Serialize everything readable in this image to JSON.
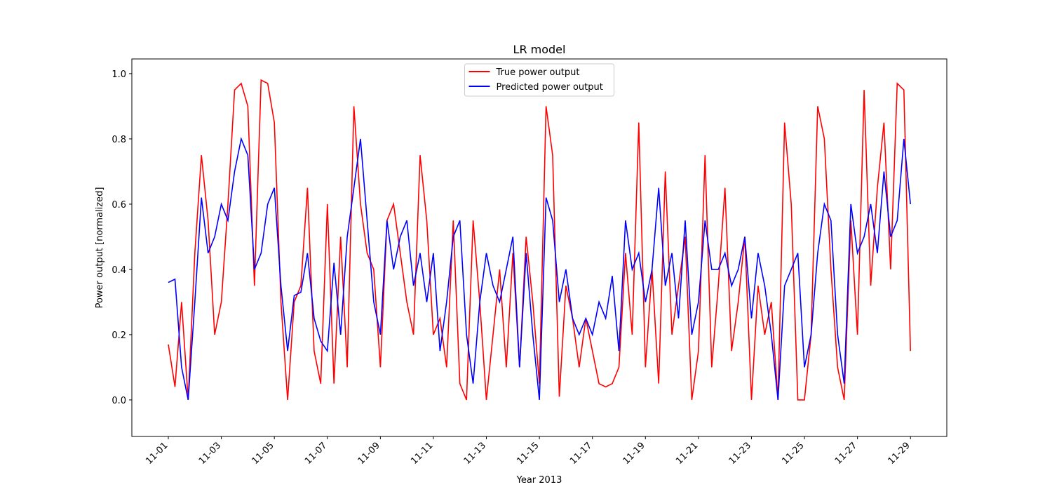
{
  "chart_data": {
    "type": "line",
    "title": "LR model",
    "x_label": "Year 2013",
    "y_label": "Power output [normalized]",
    "x": [
      0,
      0.25,
      0.5,
      0.75,
      1,
      1.25,
      1.5,
      1.75,
      2,
      2.25,
      2.5,
      2.75,
      3,
      3.25,
      3.5,
      3.75,
      4,
      4.25,
      4.5,
      4.75,
      5,
      5.25,
      5.5,
      5.75,
      6,
      6.25,
      6.5,
      6.75,
      7,
      7.25,
      7.5,
      7.75,
      8,
      8.25,
      8.5,
      8.75,
      9,
      9.25,
      9.5,
      9.75,
      10,
      10.25,
      10.5,
      10.75,
      11,
      11.25,
      11.5,
      11.75,
      12,
      12.25,
      12.5,
      12.75,
      13,
      13.25,
      13.5,
      13.75,
      14,
      14.25,
      14.5,
      14.75,
      15,
      15.25,
      15.5,
      15.75,
      16,
      16.25,
      16.5,
      16.75,
      17,
      17.25,
      17.5,
      17.75,
      18,
      18.25,
      18.5,
      18.75,
      19,
      19.25,
      19.5,
      19.75,
      20,
      20.25,
      20.5,
      20.75,
      21,
      21.25,
      21.5,
      21.75,
      22,
      22.25,
      22.5,
      22.75,
      23,
      23.25,
      23.5,
      23.75,
      24,
      24.25,
      24.5,
      24.75,
      25,
      25.25,
      25.5,
      25.75,
      26,
      26.25,
      26.5,
      26.75,
      27,
      27.25,
      27.5,
      27.75,
      28
    ],
    "series": [
      {
        "name": "True power output",
        "color": "#ff0000",
        "values": [
          0.17,
          0.04,
          0.3,
          0.0,
          0.45,
          0.75,
          0.55,
          0.2,
          0.3,
          0.6,
          0.95,
          0.97,
          0.9,
          0.35,
          0.98,
          0.97,
          0.85,
          0.3,
          0.0,
          0.3,
          0.35,
          0.65,
          0.15,
          0.05,
          0.6,
          0.05,
          0.5,
          0.1,
          0.9,
          0.6,
          0.45,
          0.4,
          0.1,
          0.55,
          0.6,
          0.45,
          0.3,
          0.2,
          0.75,
          0.55,
          0.2,
          0.25,
          0.1,
          0.55,
          0.05,
          0.0,
          0.55,
          0.3,
          0.0,
          0.2,
          0.4,
          0.1,
          0.45,
          0.1,
          0.5,
          0.3,
          0.05,
          0.9,
          0.75,
          0.01,
          0.35,
          0.25,
          0.1,
          0.25,
          0.15,
          0.05,
          0.04,
          0.05,
          0.1,
          0.45,
          0.2,
          0.85,
          0.1,
          0.4,
          0.05,
          0.7,
          0.2,
          0.35,
          0.5,
          0.0,
          0.15,
          0.75,
          0.1,
          0.35,
          0.65,
          0.15,
          0.3,
          0.5,
          0.0,
          0.35,
          0.2,
          0.3,
          0.0,
          0.85,
          0.6,
          0.0,
          0.0,
          0.2,
          0.9,
          0.8,
          0.4,
          0.1,
          0.0,
          0.55,
          0.2,
          0.95,
          0.35,
          0.65,
          0.85,
          0.4,
          0.97,
          0.95,
          0.15
        ]
      },
      {
        "name": "Predicted power output",
        "color": "#0000ff",
        "values": [
          0.36,
          0.37,
          0.1,
          0.0,
          0.3,
          0.62,
          0.45,
          0.5,
          0.6,
          0.55,
          0.7,
          0.8,
          0.75,
          0.4,
          0.45,
          0.6,
          0.65,
          0.35,
          0.15,
          0.32,
          0.33,
          0.45,
          0.25,
          0.18,
          0.15,
          0.42,
          0.2,
          0.5,
          0.65,
          0.8,
          0.55,
          0.3,
          0.2,
          0.55,
          0.4,
          0.5,
          0.55,
          0.35,
          0.45,
          0.3,
          0.45,
          0.15,
          0.3,
          0.5,
          0.55,
          0.2,
          0.05,
          0.3,
          0.45,
          0.35,
          0.3,
          0.4,
          0.5,
          0.1,
          0.45,
          0.2,
          0.0,
          0.62,
          0.55,
          0.3,
          0.4,
          0.25,
          0.2,
          0.25,
          0.2,
          0.3,
          0.25,
          0.38,
          0.15,
          0.55,
          0.4,
          0.45,
          0.3,
          0.4,
          0.65,
          0.35,
          0.45,
          0.25,
          0.55,
          0.2,
          0.3,
          0.55,
          0.4,
          0.4,
          0.45,
          0.35,
          0.4,
          0.5,
          0.25,
          0.45,
          0.35,
          0.2,
          0.0,
          0.35,
          0.4,
          0.45,
          0.1,
          0.2,
          0.45,
          0.6,
          0.55,
          0.2,
          0.05,
          0.6,
          0.45,
          0.5,
          0.6,
          0.45,
          0.7,
          0.5,
          0.55,
          0.8,
          0.6
        ]
      }
    ],
    "xlim": [
      -1.376,
      29.37
    ],
    "xticks": [
      {
        "value": 0,
        "label": "11-01"
      },
      {
        "value": 2,
        "label": "11-03"
      },
      {
        "value": 4,
        "label": "11-05"
      },
      {
        "value": 6,
        "label": "11-07"
      },
      {
        "value": 8,
        "label": "11-09"
      },
      {
        "value": 10,
        "label": "11-11"
      },
      {
        "value": 12,
        "label": "11-13"
      },
      {
        "value": 14,
        "label": "11-15"
      },
      {
        "value": 16,
        "label": "11-17"
      },
      {
        "value": 18,
        "label": "11-19"
      },
      {
        "value": 20,
        "label": "11-21"
      },
      {
        "value": 22,
        "label": "11-23"
      },
      {
        "value": 24,
        "label": "11-25"
      },
      {
        "value": 26,
        "label": "11-27"
      },
      {
        "value": 28,
        "label": "11-29"
      }
    ],
    "ylim": [
      -0.112,
      1.045
    ],
    "yticks": [
      {
        "value": 0,
        "label": "0.0"
      },
      0.2,
      0.4,
      0.6,
      0.8,
      {
        "value": 1,
        "label": "1.0"
      }
    ],
    "legend": "upper center"
  }
}
